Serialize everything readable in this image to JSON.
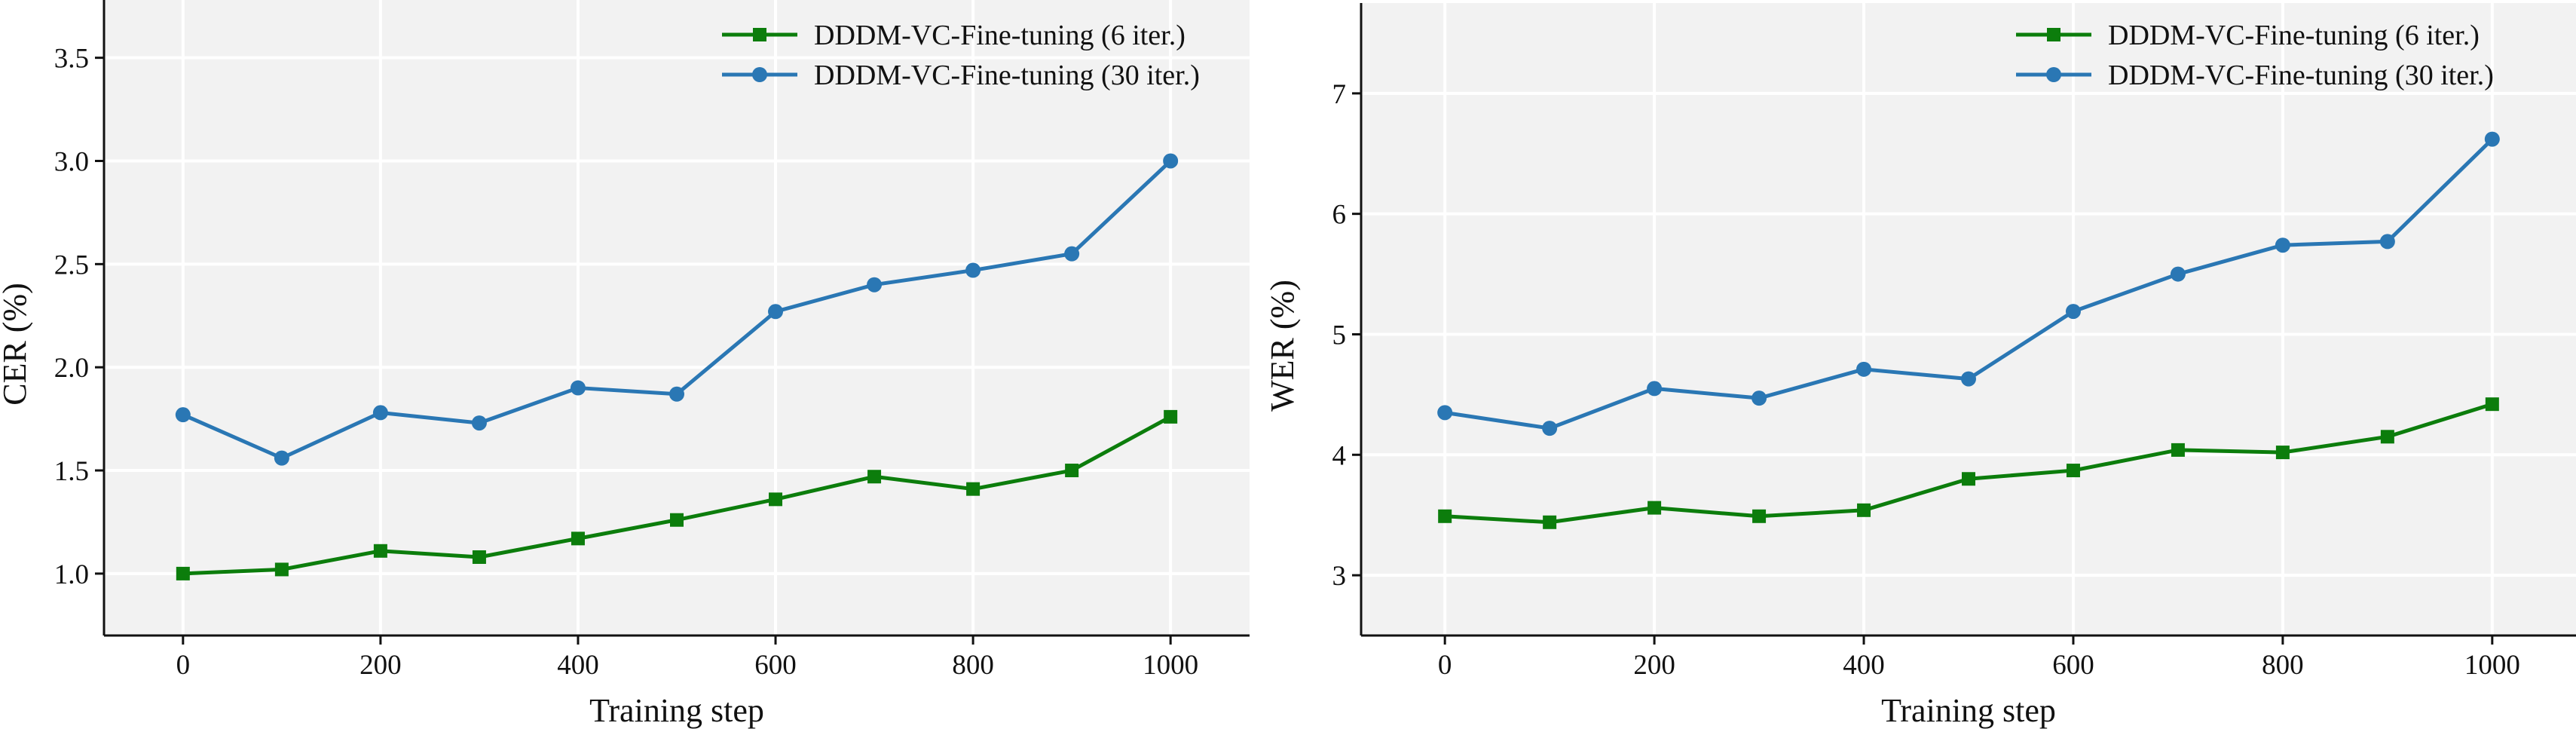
{
  "chart_data": [
    {
      "type": "line",
      "xlabel": "Training step",
      "ylabel": "CER (%)",
      "x": [
        0,
        100,
        200,
        300,
        400,
        500,
        600,
        700,
        800,
        900,
        1000
      ],
      "xticks": [
        0,
        200,
        400,
        600,
        800,
        1000
      ],
      "yticks": [
        1.0,
        1.5,
        2.0,
        2.5,
        3.0,
        3.5
      ],
      "ytick_labels": [
        "1.0",
        "1.5",
        "2.0",
        "2.5",
        "3.0",
        "3.5"
      ],
      "xlim": [
        -80,
        1080
      ],
      "ylim": [
        0.7,
        3.78
      ],
      "grid": true,
      "legend": "top-right",
      "series": [
        {
          "name": "DDDM-VC-Fine-tuning (6 iter.)",
          "color": "#0c7d0c",
          "marker": "square",
          "values": [
            1.0,
            1.02,
            1.11,
            1.08,
            1.17,
            1.26,
            1.36,
            1.47,
            1.41,
            1.5,
            1.76
          ]
        },
        {
          "name": "DDDM-VC-Fine-tuning (30 iter.)",
          "color": "#2a77b4",
          "marker": "circle",
          "values": [
            1.77,
            1.56,
            1.78,
            1.73,
            1.9,
            1.87,
            2.27,
            2.4,
            2.47,
            2.55,
            3.0
          ]
        }
      ]
    },
    {
      "type": "line",
      "xlabel": "Training step",
      "ylabel": "WER (%)",
      "x": [
        0,
        100,
        200,
        300,
        400,
        500,
        600,
        700,
        800,
        900,
        1000
      ],
      "xticks": [
        0,
        200,
        400,
        600,
        800,
        1000
      ],
      "yticks": [
        3,
        4,
        5,
        6,
        7
      ],
      "ytick_labels": [
        "3",
        "4",
        "5",
        "6",
        "7"
      ],
      "xlim": [
        -80,
        1080
      ],
      "ylim": [
        2.5,
        7.75
      ],
      "grid": true,
      "legend": "top-right",
      "series": [
        {
          "name": "DDDM-VC-Fine-tuning (6 iter.)",
          "color": "#0c7d0c",
          "marker": "square",
          "values": [
            3.49,
            3.44,
            3.56,
            3.49,
            3.54,
            3.8,
            3.87,
            4.04,
            4.02,
            4.15,
            4.42
          ]
        },
        {
          "name": "DDDM-VC-Fine-tuning (30 iter.)",
          "color": "#2a77b4",
          "marker": "circle",
          "values": [
            4.35,
            4.22,
            4.55,
            4.47,
            4.71,
            4.63,
            5.19,
            5.5,
            5.74,
            5.77,
            6.62
          ]
        }
      ]
    }
  ]
}
